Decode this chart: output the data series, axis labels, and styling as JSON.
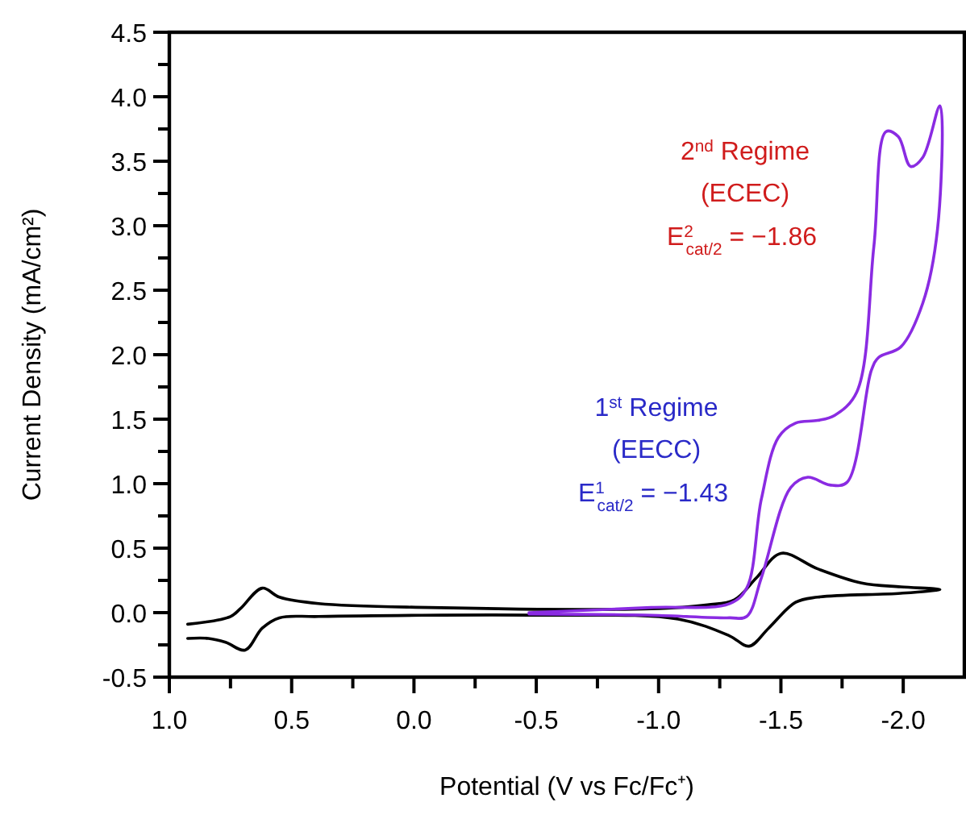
{
  "chart_data": {
    "type": "line",
    "xlabel": "Potential (V vs Fc/Fc⁺)",
    "ylabel": "Current Density (mA/cm²)",
    "xlim": [
      1.0,
      -2.25
    ],
    "xticks": [
      {
        "value": 1.0,
        "label": "1.0"
      },
      {
        "value": 0.75,
        "label": null
      },
      0.5,
      {
        "value": 0.25,
        "label": null
      },
      {
        "value": 0,
        "label": "0.0"
      },
      {
        "value": -0.25,
        "label": null
      },
      -0.5,
      {
        "value": -0.75,
        "label": null
      },
      {
        "value": -1.0,
        "label": "-1.0"
      },
      {
        "value": -1.25,
        "label": null
      },
      -1.5,
      {
        "value": -1.75,
        "label": null
      },
      {
        "value": -2.0,
        "label": "-2.0"
      }
    ],
    "ylim": [
      -0.5,
      4.5
    ],
    "yticks": [
      -0.5,
      {
        "value": -0.25,
        "label": null
      },
      {
        "value": 0,
        "label": "0.0"
      },
      {
        "value": 0.25,
        "label": null
      },
      0.5,
      {
        "value": 0.75,
        "label": null
      },
      {
        "value": 1.0,
        "label": "1.0"
      },
      {
        "value": 1.25,
        "label": null
      },
      1.5,
      {
        "value": 1.75,
        "label": null
      },
      {
        "value": 2.0,
        "label": "2.0"
      },
      {
        "value": 2.25,
        "label": null
      },
      2.5,
      {
        "value": 2.75,
        "label": null
      },
      {
        "value": 3.0,
        "label": "3.0"
      },
      {
        "value": 3.25,
        "label": null
      },
      3.5,
      {
        "value": 3.75,
        "label": null
      },
      {
        "value": 4.0,
        "label": "4.0"
      },
      {
        "value": 4.25,
        "label": null
      },
      4.5
    ],
    "grid": false,
    "marker": "none",
    "line_style": "solid",
    "series": [
      {
        "color": "#000000",
        "x": [
          0.925,
          0.75,
          0.71,
          0.62,
          0.55,
          0.39,
          -0.06,
          -0.97,
          -1.2,
          -1.31,
          -1.4,
          -1.5,
          -1.65,
          -1.83,
          -1.99,
          -2.15,
          -1.99,
          -1.65,
          -1.56,
          -1.45,
          -1.37,
          -1.29,
          -1.08,
          -0.52,
          0.39,
          0.55,
          0.62,
          0.69,
          0.77,
          0.84,
          0.925
        ],
        "values": [
          -0.09,
          -0.03,
          0.03,
          0.19,
          0.12,
          0.07,
          0.04,
          0.03,
          0.06,
          0.1,
          0.27,
          0.46,
          0.34,
          0.23,
          0.2,
          0.18,
          0.15,
          0.12,
          0.08,
          -0.12,
          -0.26,
          -0.18,
          -0.05,
          -0.02,
          -0.03,
          -0.04,
          -0.12,
          -0.29,
          -0.23,
          -0.2,
          -0.2
        ]
      },
      {
        "color": "#8a2be2",
        "x": [
          -0.47,
          -0.97,
          -1.29,
          -1.36,
          -1.42,
          -1.49,
          -1.56,
          -1.65,
          -1.72,
          -1.81,
          -1.88,
          -1.93,
          -1.98,
          -2.03,
          -2.08,
          -2.15,
          -2.14,
          -2.08,
          -1.99,
          -1.9,
          -1.87,
          -1.77,
          -1.7,
          -1.61,
          -1.54,
          -1.42,
          -1.36,
          -1.29,
          -0.97,
          -0.47
        ],
        "values": [
          0,
          0.04,
          0.07,
          0.19,
          0.88,
          1.36,
          1.47,
          1.49,
          1.53,
          1.71,
          2.84,
          3.73,
          3.69,
          3.46,
          3.53,
          3.93,
          2.97,
          2.4,
          2.06,
          1.98,
          1.88,
          1.01,
          0.99,
          1.05,
          0.97,
          0.27,
          -0.03,
          -0.04,
          -0.02,
          -0.01
        ]
      }
    ],
    "annotations": [
      "2$^{nd}$ Regime",
      "(ECEC)",
      "E$^{2}$$_{cat/2}$ = −1.86",
      "1$^{st}$ Regime",
      "(EECC)",
      "E$^{1}$$_{cat/2}$ = −1.43"
    ]
  }
}
